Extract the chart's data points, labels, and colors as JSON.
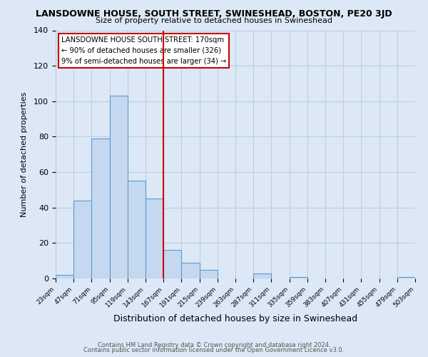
{
  "title": "LANSDOWNE HOUSE, SOUTH STREET, SWINESHEAD, BOSTON, PE20 3JD",
  "subtitle": "Size of property relative to detached houses in Swineshead",
  "xlabel": "Distribution of detached houses by size in Swineshead",
  "ylabel": "Number of detached properties",
  "bar_color": "#c5d8f0",
  "bar_edge_color": "#5b9bd5",
  "bg_color": "#dce8f5",
  "grid_color": "#b8cde0",
  "marker_line_color": "#cc0000",
  "annotation_title": "LANSDOWNE HOUSE SOUTH STREET: 170sqm",
  "annotation_line1": "← 90% of detached houses are smaller (326)",
  "annotation_line2": "9% of semi-detached houses are larger (34) →",
  "bins": [
    23,
    47,
    71,
    95,
    119,
    143,
    167,
    191,
    215,
    239,
    263,
    287,
    311,
    335,
    359,
    383,
    407,
    431,
    455,
    479,
    503
  ],
  "counts": [
    2,
    44,
    79,
    103,
    55,
    45,
    16,
    9,
    5,
    0,
    0,
    3,
    0,
    1,
    0,
    0,
    0,
    0,
    0,
    1
  ],
  "ylim": [
    0,
    140
  ],
  "yticks": [
    0,
    20,
    40,
    60,
    80,
    100,
    120,
    140
  ],
  "footer1": "Contains HM Land Registry data © Crown copyright and database right 2024.",
  "footer2": "Contains public sector information licensed under the Open Government Licence v3.0."
}
